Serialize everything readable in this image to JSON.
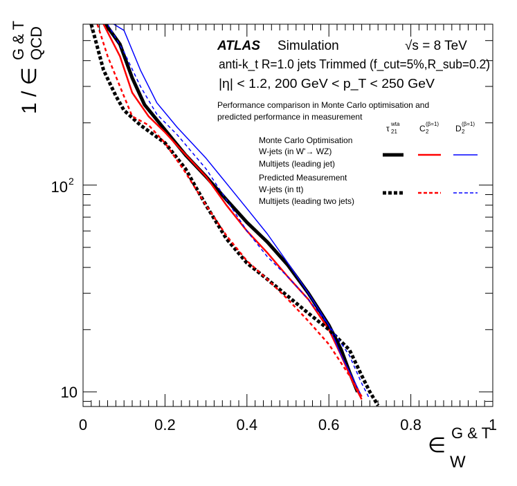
{
  "chart_data": {
    "type": "line",
    "title": "",
    "xlabel": "ε_W^{G&T}",
    "ylabel": "1 / ε_QCD^{G&T}",
    "xlim": [
      0,
      1
    ],
    "ylim": [
      8.5,
      600
    ],
    "yscale": "log",
    "x_ticks": [
      {
        "value": 0,
        "label": "0"
      },
      {
        "value": 0.2,
        "label": "0.2"
      },
      {
        "value": 0.4,
        "label": "0.4"
      },
      {
        "value": 0.6,
        "label": "0.6"
      },
      {
        "value": 0.8,
        "label": "0.8"
      },
      {
        "value": 1.0,
        "label": "1"
      }
    ],
    "y_ticks": [
      {
        "value": 10,
        "label": "10"
      },
      {
        "value": 100,
        "label": "10",
        "exponent": "2"
      }
    ],
    "axis_labels": {
      "x_symbol": "∈",
      "x_sup": "G & T",
      "x_sub": "W",
      "y_prefix": "1 / ∈",
      "y_sup": "G & T",
      "y_sub": "QCD"
    },
    "annotations": {
      "atlas": "ATLAS",
      "simulation": "Simulation",
      "energy": "√s = 8 TeV",
      "jets_line": "anti-k_t R=1.0 jets Trimmed (f_cut=5%,R_sub=0.2)",
      "eta_pt_line": "|η| < 1.2, 200 GeV < p_T < 250 GeV",
      "comparison_line1": "Performance comparison in Monte Carlo optimisation and",
      "comparison_line2": "predicted performance in measurement"
    },
    "legend": {
      "columns": [
        {
          "main": "τ",
          "sub": "21",
          "sup": "wta"
        },
        {
          "main": "C",
          "sub": "2",
          "sup": "(β=1)"
        },
        {
          "main": "D",
          "sub": "2",
          "sup": "(β=1)"
        }
      ],
      "groups": [
        {
          "lines": [
            "Monte Carlo Optimisation",
            "W-jets (in W'→ WZ)",
            "Multijets (leading jet)"
          ],
          "style": "solid"
        },
        {
          "lines": [
            "Predicted Measurement",
            "W-jets (in tt)",
            "Multijets (leading two jets)"
          ],
          "style": "dashed"
        }
      ]
    },
    "colors": {
      "tau21": "#000000",
      "c2": "#ff0000",
      "d2": "#0000ff"
    },
    "series": [
      {
        "name": "τ21 wta — Monte Carlo Optimisation",
        "variable": "tau21",
        "style": "solid",
        "color": "#000000",
        "width": 5,
        "points": [
          [
            0.055,
            600
          ],
          [
            0.09,
            480
          ],
          [
            0.12,
            330
          ],
          [
            0.15,
            245
          ],
          [
            0.2,
            185
          ],
          [
            0.25,
            140
          ],
          [
            0.3,
            110
          ],
          [
            0.35,
            85
          ],
          [
            0.4,
            66
          ],
          [
            0.45,
            53
          ],
          [
            0.5,
            41
          ],
          [
            0.55,
            30
          ],
          [
            0.6,
            21
          ],
          [
            0.63,
            16
          ],
          [
            0.65,
            12.5
          ],
          [
            0.67,
            10
          ]
        ]
      },
      {
        "name": "C2 β=1 — Monte Carlo Optimisation",
        "variable": "c2",
        "style": "solid",
        "color": "#ff0000",
        "width": 2.5,
        "points": [
          [
            0.05,
            600
          ],
          [
            0.09,
            420
          ],
          [
            0.12,
            280
          ],
          [
            0.16,
            215
          ],
          [
            0.2,
            180
          ],
          [
            0.23,
            155
          ],
          [
            0.3,
            110
          ],
          [
            0.35,
            80
          ],
          [
            0.4,
            60
          ],
          [
            0.45,
            47
          ],
          [
            0.5,
            36
          ],
          [
            0.55,
            28
          ],
          [
            0.6,
            20
          ],
          [
            0.63,
            15
          ],
          [
            0.66,
            11
          ],
          [
            0.68,
            9.2
          ]
        ]
      },
      {
        "name": "D2 β=1 — Monte Carlo Optimisation",
        "variable": "d2",
        "style": "solid",
        "color": "#0000ff",
        "width": 1.5,
        "points": [
          [
            0.075,
            600
          ],
          [
            0.1,
            560
          ],
          [
            0.14,
            360
          ],
          [
            0.18,
            250
          ],
          [
            0.23,
            190
          ],
          [
            0.3,
            135
          ],
          [
            0.35,
            102
          ],
          [
            0.4,
            77
          ],
          [
            0.45,
            58
          ],
          [
            0.5,
            42
          ],
          [
            0.55,
            30
          ],
          [
            0.6,
            21
          ],
          [
            0.63,
            15
          ],
          [
            0.66,
            11.5
          ],
          [
            0.68,
            9.5
          ]
        ]
      },
      {
        "name": "τ21 wta — Predicted Measurement",
        "variable": "tau21",
        "style": "dashed",
        "color": "#000000",
        "width": 5,
        "points": [
          [
            0.02,
            600
          ],
          [
            0.05,
            360
          ],
          [
            0.08,
            270
          ],
          [
            0.1,
            230
          ],
          [
            0.14,
            195
          ],
          [
            0.2,
            160
          ],
          [
            0.25,
            120
          ],
          [
            0.3,
            80
          ],
          [
            0.35,
            55
          ],
          [
            0.4,
            42
          ],
          [
            0.45,
            35
          ],
          [
            0.5,
            29
          ],
          [
            0.55,
            24
          ],
          [
            0.6,
            20
          ],
          [
            0.65,
            16
          ],
          [
            0.68,
            12
          ],
          [
            0.7,
            10
          ],
          [
            0.72,
            8.6
          ]
        ]
      },
      {
        "name": "C2 β=1 — Predicted Measurement",
        "variable": "c2",
        "style": "dashed",
        "color": "#ff0000",
        "width": 2.5,
        "points": [
          [
            0.035,
            600
          ],
          [
            0.06,
            420
          ],
          [
            0.09,
            300
          ],
          [
            0.12,
            215
          ],
          [
            0.16,
            195
          ],
          [
            0.2,
            160
          ],
          [
            0.25,
            115
          ],
          [
            0.3,
            80
          ],
          [
            0.35,
            57
          ],
          [
            0.4,
            43
          ],
          [
            0.45,
            35
          ],
          [
            0.5,
            28
          ],
          [
            0.55,
            22
          ],
          [
            0.6,
            17
          ],
          [
            0.65,
            12
          ],
          [
            0.68,
            9.5
          ]
        ]
      },
      {
        "name": "D2 β=1 — Predicted Measurement",
        "variable": "d2",
        "style": "dashed",
        "color": "#0000ff",
        "width": 1.5,
        "points": [
          [
            0.06,
            600
          ],
          [
            0.1,
            440
          ],
          [
            0.14,
            300
          ],
          [
            0.18,
            220
          ],
          [
            0.23,
            175
          ],
          [
            0.3,
            120
          ],
          [
            0.35,
            85
          ],
          [
            0.4,
            60
          ],
          [
            0.45,
            45
          ],
          [
            0.5,
            36
          ],
          [
            0.55,
            28
          ],
          [
            0.6,
            21
          ],
          [
            0.65,
            15
          ],
          [
            0.68,
            11
          ],
          [
            0.7,
            9.2
          ]
        ]
      }
    ]
  }
}
